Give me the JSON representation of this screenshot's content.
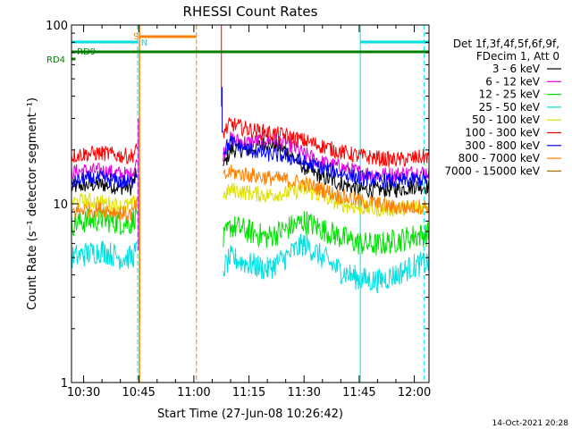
{
  "chart_data": {
    "type": "line",
    "title": "RHESSI Count Rates",
    "xlabel": "Start Time (27-Jun-08 10:26:42)",
    "ylabel": "Count Rate (s⁻¹ detector segment⁻¹)",
    "yscale": "log",
    "ylim": [
      1,
      100
    ],
    "xlim_min": [
      26.7,
      124.0
    ],
    "x_ticks": [
      {
        "label": "10:30",
        "min": 30
      },
      {
        "label": "10:45",
        "min": 45
      },
      {
        "label": "11:00",
        "min": 60
      },
      {
        "label": "11:15",
        "min": 75
      },
      {
        "label": "11:30",
        "min": 90
      },
      {
        "label": "11:45",
        "min": 105
      },
      {
        "label": "12:00",
        "min": 120
      }
    ],
    "y_ticks": [
      {
        "label": "1",
        "value": 1
      },
      {
        "label": "10",
        "value": 10
      },
      {
        "label": "100",
        "value": 100
      }
    ],
    "legend_header": [
      "Det 1f,3f,4f,5f,6f,9f,",
      "FDecim 1, Att 0"
    ],
    "legend_placement": "right",
    "series": [
      {
        "name": "3 - 6 keV",
        "color": "#000000",
        "values": [
          [
            26.7,
            12.3
          ],
          [
            30,
            12.7
          ],
          [
            35,
            12.8
          ],
          [
            40,
            12.4
          ],
          [
            43,
            12.3
          ],
          [
            44.5,
            15
          ],
          [
            59.5,
            null
          ],
          [
            68,
            16
          ],
          [
            70,
            20
          ],
          [
            75,
            20
          ],
          [
            80,
            22
          ],
          [
            85,
            20
          ],
          [
            90,
            16
          ],
          [
            95,
            14
          ],
          [
            100,
            13
          ],
          [
            105,
            12
          ],
          [
            110,
            12
          ],
          [
            115,
            12
          ],
          [
            120,
            12.5
          ],
          [
            124,
            12.5
          ]
        ]
      },
      {
        "name": "6 - 12 keV",
        "color": "#e000e0",
        "values": [
          [
            26.7,
            15
          ],
          [
            30,
            15.3
          ],
          [
            35,
            15.3
          ],
          [
            40,
            14.7
          ],
          [
            43,
            14.5
          ],
          [
            44.5,
            17
          ],
          [
            59.5,
            null
          ],
          [
            68,
            19
          ],
          [
            70,
            23
          ],
          [
            75,
            22
          ],
          [
            80,
            23
          ],
          [
            85,
            22
          ],
          [
            90,
            19
          ],
          [
            95,
            17
          ],
          [
            100,
            16
          ],
          [
            105,
            15
          ],
          [
            110,
            14.6
          ],
          [
            115,
            14.6
          ],
          [
            120,
            15
          ],
          [
            124,
            15
          ]
        ]
      },
      {
        "name": "12 - 25 keV",
        "color": "#00e000",
        "values": [
          [
            26.7,
            7.7
          ],
          [
            30,
            8
          ],
          [
            35,
            8.2
          ],
          [
            40,
            7.8
          ],
          [
            43,
            7.8
          ],
          [
            44.5,
            9
          ],
          [
            59.5,
            null
          ],
          [
            68,
            6.2
          ],
          [
            70,
            7.5
          ],
          [
            75,
            7
          ],
          [
            80,
            6.5
          ],
          [
            85,
            7.2
          ],
          [
            90,
            8
          ],
          [
            95,
            7.2
          ],
          [
            100,
            6.5
          ],
          [
            105,
            6
          ],
          [
            110,
            5.9
          ],
          [
            115,
            6.2
          ],
          [
            120,
            6.6
          ],
          [
            124,
            6.8
          ]
        ]
      },
      {
        "name": "25 - 50 keV",
        "color": "#00e0e0",
        "values": [
          [
            26.7,
            5
          ],
          [
            30,
            5.2
          ],
          [
            35,
            5.5
          ],
          [
            40,
            5
          ],
          [
            43,
            5
          ],
          [
            44.5,
            5.4
          ],
          [
            59.5,
            null
          ],
          [
            68,
            4.3
          ],
          [
            70,
            5
          ],
          [
            75,
            4.6
          ],
          [
            80,
            4.3
          ],
          [
            85,
            5
          ],
          [
            90,
            6
          ],
          [
            95,
            5
          ],
          [
            100,
            4.2
          ],
          [
            105,
            3.8
          ],
          [
            110,
            3.7
          ],
          [
            115,
            4
          ],
          [
            120,
            4.5
          ],
          [
            124,
            4.7
          ]
        ]
      },
      {
        "name": "50 - 100 keV",
        "color": "#e0e000",
        "values": [
          [
            26.7,
            10.2
          ],
          [
            30,
            10.4
          ],
          [
            35,
            10.2
          ],
          [
            40,
            9.7
          ],
          [
            43,
            9.8
          ],
          [
            44.5,
            10.5
          ],
          [
            59.5,
            null
          ],
          [
            68,
            11
          ],
          [
            70,
            12
          ],
          [
            75,
            11.5
          ],
          [
            80,
            11.2
          ],
          [
            85,
            11.5
          ],
          [
            90,
            12
          ],
          [
            95,
            11
          ],
          [
            100,
            10
          ],
          [
            105,
            9.5
          ],
          [
            110,
            9.3
          ],
          [
            115,
            9.4
          ],
          [
            120,
            9.6
          ],
          [
            124,
            9.6
          ]
        ]
      },
      {
        "name": "100 - 300 keV",
        "color": "#ff0000",
        "values": [
          [
            26.7,
            18.5
          ],
          [
            30,
            19
          ],
          [
            35,
            19.2
          ],
          [
            40,
            18.6
          ],
          [
            43,
            18.5
          ],
          [
            44.5,
            20
          ],
          [
            59.5,
            null
          ],
          [
            68,
            25
          ],
          [
            70,
            28
          ],
          [
            75,
            26
          ],
          [
            80,
            25
          ],
          [
            85,
            24
          ],
          [
            90,
            22.5
          ],
          [
            95,
            21
          ],
          [
            100,
            19.5
          ],
          [
            105,
            18.5
          ],
          [
            110,
            18
          ],
          [
            115,
            17.5
          ],
          [
            120,
            18
          ],
          [
            124,
            18.5
          ]
        ]
      },
      {
        "name": "300 - 800 keV",
        "color": "#0000ff",
        "values": [
          [
            26.7,
            13
          ],
          [
            30,
            13.7
          ],
          [
            35,
            13.8
          ],
          [
            40,
            13.4
          ],
          [
            43,
            13.2
          ],
          [
            44.5,
            15
          ],
          [
            59.5,
            null
          ],
          [
            68,
            20
          ],
          [
            70,
            22
          ],
          [
            75,
            20
          ],
          [
            80,
            19
          ],
          [
            85,
            18.5
          ],
          [
            90,
            17
          ],
          [
            95,
            15.8
          ],
          [
            100,
            14.8
          ],
          [
            105,
            14
          ],
          [
            110,
            13.6
          ],
          [
            115,
            13.3
          ],
          [
            120,
            13.6
          ],
          [
            124,
            13.8
          ]
        ]
      },
      {
        "name": "800 - 7000 keV",
        "color": "#ff8000",
        "values": [
          [
            26.7,
            9
          ],
          [
            30,
            9.3
          ],
          [
            35,
            9.3
          ],
          [
            40,
            8.9
          ],
          [
            43,
            8.7
          ],
          [
            44.5,
            10
          ],
          [
            59.5,
            null
          ],
          [
            68,
            14
          ],
          [
            70,
            15
          ],
          [
            75,
            14.5
          ],
          [
            80,
            14
          ],
          [
            85,
            13.6
          ],
          [
            90,
            13
          ],
          [
            95,
            12
          ],
          [
            100,
            11
          ],
          [
            105,
            10.4
          ],
          [
            110,
            10
          ],
          [
            115,
            9.5
          ],
          [
            120,
            9.6
          ],
          [
            124,
            9.7
          ]
        ]
      },
      {
        "name": "7000 - 15000 keV",
        "color": "#a07000",
        "values": []
      }
    ],
    "annotations": [
      {
        "label": "S",
        "color": "#ff8000"
      },
      {
        "label": "N",
        "color": "#00e0e0"
      },
      {
        "label": "RD4",
        "color": "#008000"
      },
      {
        "label": "RD9",
        "color": "#008000"
      }
    ]
  },
  "footer": {
    "timestamp": "14-Oct-2021 20:28"
  }
}
